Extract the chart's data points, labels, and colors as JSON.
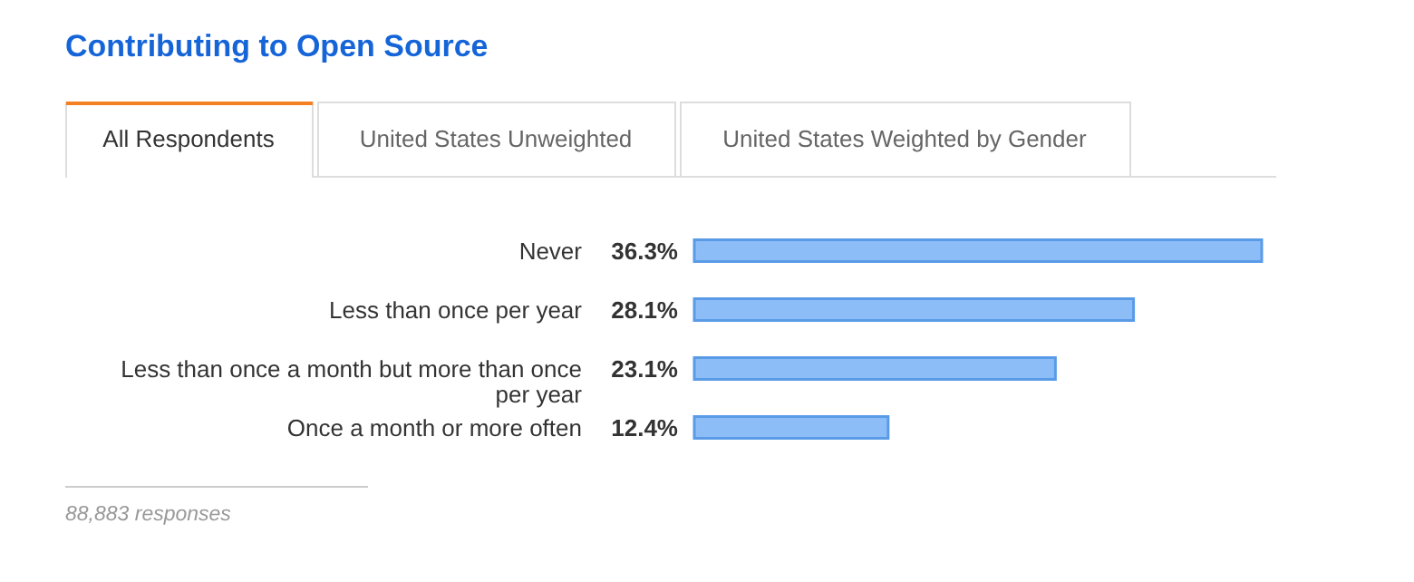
{
  "chart_data": {
    "type": "bar",
    "orientation": "horizontal",
    "title": "Contributing to Open Source",
    "categories": [
      "Never",
      "Less than once per year",
      "Less than once a month but more than once per year",
      "Once a month or more often"
    ],
    "values": [
      36.3,
      28.1,
      23.1,
      12.4
    ],
    "value_labels": [
      "36.3%",
      "28.1%",
      "23.1%",
      "12.4%"
    ],
    "color": "#8dbdf7",
    "annotations": [
      "All Respondents",
      "United States Unweighted",
      "United States Weighted by Gender",
      "88,883 responses"
    ]
  }
}
